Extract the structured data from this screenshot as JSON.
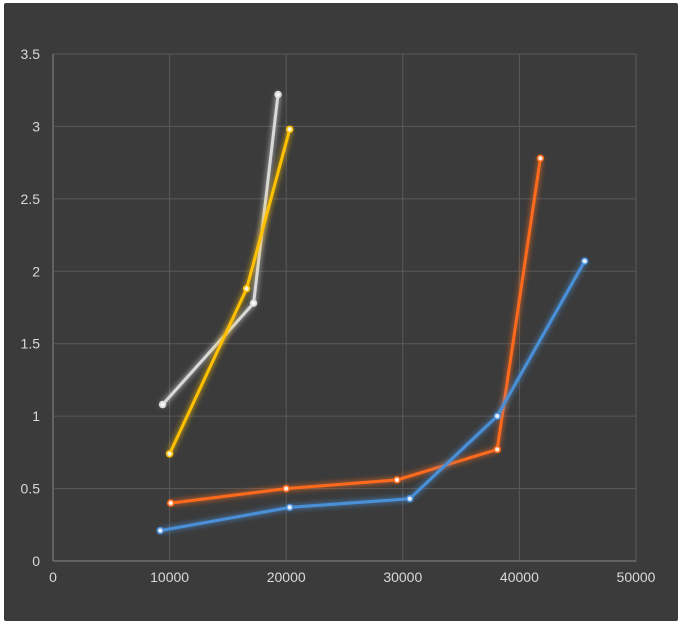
{
  "chart_data": {
    "type": "line",
    "title": "",
    "xlabel": "",
    "ylabel": "",
    "xlim": [
      0,
      50000
    ],
    "ylim": [
      0,
      3.5
    ],
    "x_ticks": [
      0,
      10000,
      20000,
      30000,
      40000,
      50000
    ],
    "y_ticks": [
      0,
      0.5,
      1,
      1.5,
      2,
      2.5,
      3,
      3.5
    ],
    "x_tick_labels": [
      "0",
      "10000",
      "20000",
      "30000",
      "40000",
      "50000"
    ],
    "y_tick_labels": [
      "0",
      "0.5",
      "1",
      "1.5",
      "2",
      "2.5",
      "3",
      "3.5"
    ],
    "grid": true,
    "legend": "none",
    "background": "#3b3b3b",
    "series": [
      {
        "color": "#d9d9d9",
        "points": [
          [
            9400,
            1.08
          ],
          [
            17200,
            1.78
          ],
          [
            19300,
            3.22
          ]
        ]
      },
      {
        "color": "#ffc000",
        "points": [
          [
            10000,
            0.74
          ],
          [
            16600,
            1.88
          ],
          [
            20300,
            2.98
          ]
        ]
      },
      {
        "color": "#ff6b1a",
        "points": [
          [
            10100,
            0.4
          ],
          [
            20000,
            0.5
          ],
          [
            29500,
            0.56
          ],
          [
            38100,
            0.77
          ],
          [
            41800,
            2.78
          ]
        ]
      },
      {
        "color": "#4a90d9",
        "points": [
          [
            9200,
            0.21
          ],
          [
            20300,
            0.37
          ],
          [
            30600,
            0.43
          ],
          [
            38100,
            1.0
          ],
          [
            45600,
            2.07
          ]
        ]
      }
    ]
  }
}
